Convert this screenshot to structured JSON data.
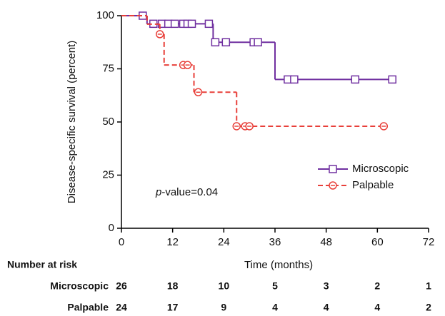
{
  "chart_data": {
    "type": "step",
    "y_label": "Disease-specific survival (percent)",
    "x_label": "Time (months)",
    "xlim": [
      0,
      72
    ],
    "xticks": [
      0,
      12,
      24,
      36,
      48,
      60,
      72
    ],
    "ylim": [
      0,
      100
    ],
    "yticks": [
      0,
      25,
      50,
      75,
      100
    ],
    "annotation": [
      "p",
      "-value=0.04"
    ],
    "legend": "right",
    "series": [
      {
        "name": "Microscopic",
        "color": "#7030a0",
        "marker": "square",
        "dashed": false,
        "x": [
          0,
          6,
          21.5,
          36,
          63.5
        ],
        "values": [
          100,
          96.2,
          87.5,
          70,
          70
        ],
        "censor_x": [
          5,
          7.5,
          9.5,
          11,
          12.5,
          14.5,
          15.5,
          16.5,
          20.5,
          22,
          24.5,
          31,
          32,
          39,
          40.5,
          54.8,
          63.5
        ],
        "censor_values": [
          100,
          96.2,
          96.2,
          96.2,
          96.2,
          96.2,
          96.2,
          96.2,
          96.2,
          87.5,
          87.5,
          87.5,
          87.5,
          70,
          70,
          70,
          70
        ]
      },
      {
        "name": "Palpable",
        "color": "#e8403a",
        "marker": "circle",
        "dashed": true,
        "x": [
          0,
          6,
          9,
          10,
          17,
          27,
          61.5
        ],
        "values": [
          100,
          96,
          91.3,
          76.8,
          64,
          48,
          48
        ],
        "censor_x": [
          9,
          14.5,
          15.5,
          18,
          27,
          29,
          30,
          61.5
        ],
        "censor_values": [
          91.3,
          76.8,
          76.8,
          64,
          48,
          48,
          48,
          48
        ]
      }
    ],
    "risk_table": {
      "title": "Number at risk",
      "rows": [
        {
          "name": "Microscopic",
          "values": [
            26,
            18,
            10,
            5,
            3,
            2,
            1
          ]
        },
        {
          "name": "Palpable",
          "values": [
            24,
            17,
            9,
            4,
            4,
            4,
            2
          ]
        }
      ]
    }
  }
}
